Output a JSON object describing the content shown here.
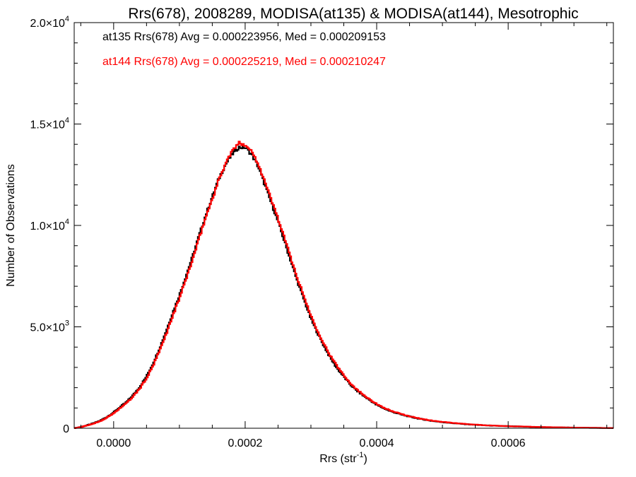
{
  "chart_data": {
    "type": "histogram-step",
    "title": "Rrs(678), 2008289, MODISA(at135) & MODISA(at144), Mesotrophic",
    "xlabel_main": "Rrs (str",
    "xlabel_sup": "-1",
    "xlabel_close": ")",
    "ylabel": "Number of Observations",
    "xlim": [
      -6e-05,
      0.00076
    ],
    "ylim": [
      0,
      20000
    ],
    "x_ticks": [
      {
        "value": 0.0,
        "label": "0.0000"
      },
      {
        "value": 0.0002,
        "label": "0.0002"
      },
      {
        "value": 0.0004,
        "label": "0.0004"
      },
      {
        "value": 0.0006,
        "label": "0.0006"
      }
    ],
    "x_minor_step": 5e-05,
    "y_ticks": [
      {
        "value": 0,
        "mant": "0",
        "sup": ""
      },
      {
        "value": 5000,
        "mant": "5.0×10",
        "sup": "3"
      },
      {
        "value": 10000,
        "mant": "1.0×10",
        "sup": "4"
      },
      {
        "value": 15000,
        "mant": "1.5×10",
        "sup": "4"
      },
      {
        "value": 20000,
        "mant": "2.0×10",
        "sup": "4"
      }
    ],
    "y_minor_step": 1000,
    "series": [
      {
        "name": "at135",
        "color": "#000000",
        "legend": "at135 Rrs(678) Avg = 0.000223956, Med = 0.000209153",
        "points": [
          [
            -6e-05,
            0
          ],
          [
            -5e-05,
            60
          ],
          [
            -4e-05,
            150
          ],
          [
            -3e-05,
            250
          ],
          [
            -2e-05,
            380
          ],
          [
            -1e-05,
            560
          ],
          [
            0.0,
            780
          ],
          [
            1e-05,
            1050
          ],
          [
            2e-05,
            1300
          ],
          [
            3e-05,
            1650
          ],
          [
            4e-05,
            2050
          ],
          [
            5e-05,
            2550
          ],
          [
            6e-05,
            3200
          ],
          [
            7e-05,
            3950
          ],
          [
            8e-05,
            4800
          ],
          [
            9e-05,
            5700
          ],
          [
            0.0001,
            6550
          ],
          [
            0.00011,
            7500
          ],
          [
            0.00012,
            8450
          ],
          [
            0.00013,
            9500
          ],
          [
            0.00014,
            10500
          ],
          [
            0.00015,
            11400
          ],
          [
            0.00016,
            12300
          ],
          [
            0.00017,
            13000
          ],
          [
            0.00018,
            13500
          ],
          [
            0.00019,
            13850
          ],
          [
            0.0002,
            13850
          ],
          [
            0.00021,
            13500
          ],
          [
            0.00022,
            12900
          ],
          [
            0.00023,
            12000
          ],
          [
            0.00024,
            11100
          ],
          [
            0.00025,
            10200
          ],
          [
            0.00026,
            9200
          ],
          [
            0.00027,
            8200
          ],
          [
            0.00028,
            7200
          ],
          [
            0.00029,
            6300
          ],
          [
            0.0003,
            5400
          ],
          [
            0.00031,
            4700
          ],
          [
            0.00032,
            4050
          ],
          [
            0.00033,
            3450
          ],
          [
            0.00034,
            2950
          ],
          [
            0.00035,
            2550
          ],
          [
            0.00036,
            2150
          ],
          [
            0.00037,
            1850
          ],
          [
            0.00038,
            1600
          ],
          [
            0.00039,
            1380
          ],
          [
            0.0004,
            1150
          ],
          [
            0.00042,
            850
          ],
          [
            0.00044,
            650
          ],
          [
            0.00046,
            500
          ],
          [
            0.00048,
            380
          ],
          [
            0.0005,
            300
          ],
          [
            0.00052,
            240
          ],
          [
            0.00054,
            190
          ],
          [
            0.00056,
            150
          ],
          [
            0.00058,
            120
          ],
          [
            0.0006,
            100
          ],
          [
            0.00062,
            80
          ],
          [
            0.00064,
            65
          ],
          [
            0.00066,
            50
          ],
          [
            0.00068,
            40
          ],
          [
            0.0007,
            30
          ],
          [
            0.00072,
            22
          ],
          [
            0.00074,
            15
          ],
          [
            0.00076,
            10
          ]
        ]
      },
      {
        "name": "at144",
        "color": "#ff0000",
        "legend": "at144 Rrs(678) Avg = 0.000225219, Med = 0.000210247",
        "points": [
          [
            -6e-05,
            0
          ],
          [
            -5e-05,
            55
          ],
          [
            -4e-05,
            140
          ],
          [
            -3e-05,
            235
          ],
          [
            -2e-05,
            360
          ],
          [
            -1e-05,
            530
          ],
          [
            0.0,
            740
          ],
          [
            1e-05,
            1000
          ],
          [
            2e-05,
            1250
          ],
          [
            3e-05,
            1580
          ],
          [
            4e-05,
            1970
          ],
          [
            5e-05,
            2460
          ],
          [
            6e-05,
            3080
          ],
          [
            7e-05,
            3820
          ],
          [
            8e-05,
            4650
          ],
          [
            9e-05,
            5550
          ],
          [
            0.0001,
            6400
          ],
          [
            0.00011,
            7350
          ],
          [
            0.00012,
            8300
          ],
          [
            0.00013,
            9350
          ],
          [
            0.00014,
            10400
          ],
          [
            0.00015,
            11300
          ],
          [
            0.00016,
            12250
          ],
          [
            0.00017,
            13050
          ],
          [
            0.00018,
            13650
          ],
          [
            0.00019,
            14050
          ],
          [
            0.0002,
            14000
          ],
          [
            0.00021,
            13650
          ],
          [
            0.00022,
            13050
          ],
          [
            0.00023,
            12150
          ],
          [
            0.00024,
            11250
          ],
          [
            0.00025,
            10350
          ],
          [
            0.00026,
            9350
          ],
          [
            0.00027,
            8350
          ],
          [
            0.00028,
            7350
          ],
          [
            0.00029,
            6450
          ],
          [
            0.0003,
            5550
          ],
          [
            0.00031,
            4820
          ],
          [
            0.00032,
            4150
          ],
          [
            0.00033,
            3550
          ],
          [
            0.00034,
            3050
          ],
          [
            0.00035,
            2630
          ],
          [
            0.00036,
            2220
          ],
          [
            0.00037,
            1900
          ],
          [
            0.00038,
            1650
          ],
          [
            0.00039,
            1420
          ],
          [
            0.0004,
            1190
          ],
          [
            0.00042,
            880
          ],
          [
            0.00044,
            670
          ],
          [
            0.00046,
            515
          ],
          [
            0.00048,
            395
          ],
          [
            0.0005,
            310
          ],
          [
            0.00052,
            248
          ],
          [
            0.00054,
            196
          ],
          [
            0.00056,
            155
          ],
          [
            0.00058,
            124
          ],
          [
            0.0006,
            103
          ],
          [
            0.00062,
            83
          ],
          [
            0.00064,
            67
          ],
          [
            0.00066,
            52
          ],
          [
            0.00068,
            41
          ],
          [
            0.0007,
            31
          ],
          [
            0.00072,
            23
          ],
          [
            0.00074,
            16
          ],
          [
            0.00076,
            10
          ]
        ]
      }
    ]
  }
}
